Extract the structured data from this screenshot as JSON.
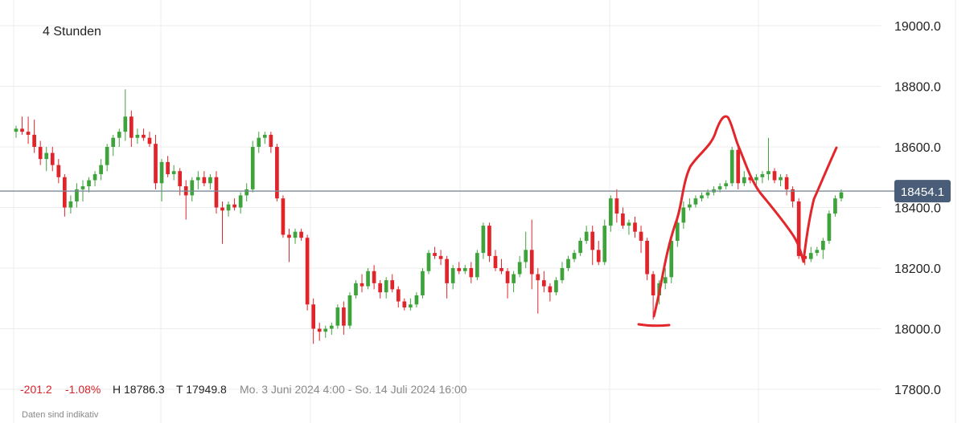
{
  "header": {
    "timeframe_label": "4 Stunden"
  },
  "stats": {
    "change_abs": "-201.2",
    "change_pct": "-1.08%",
    "high": "H 18786.3",
    "low": "T 17949.8",
    "range": "Mo. 3 Juni 2024 4:00 - So. 14 Juli 2024 16:00"
  },
  "footer": {
    "disclaimer": "Daten sind indikativ"
  },
  "colors": {
    "up": "#3ea33a",
    "down": "#e0242a",
    "grid": "#ececec",
    "price_line": "#7d8a99",
    "price_tag": "#4a5d78",
    "annotation": "#e3262b",
    "neg_text": "#d6222a",
    "text": "#222222",
    "muted": "#888888"
  },
  "chart_data": {
    "type": "candlestick",
    "title": "",
    "xlabel": "",
    "ylabel": "",
    "ylim": [
      17760,
      19060
    ],
    "y_ticks": [
      19000,
      18800,
      18600,
      18400,
      18200,
      18000,
      17800
    ],
    "y_tick_labels": [
      "19000.0",
      "18800.0",
      "18600.0",
      "18400.0",
      "18200.0",
      "18000.0",
      "17800.0"
    ],
    "grid": true,
    "last_price": 18454.1,
    "last_price_label": "18454.1",
    "candles": [
      [
        18650,
        18670,
        18630,
        18660
      ],
      [
        18660,
        18700,
        18640,
        18650
      ],
      [
        18650,
        18700,
        18610,
        18640
      ],
      [
        18640,
        18690,
        18580,
        18600
      ],
      [
        18600,
        18620,
        18540,
        18560
      ],
      [
        18560,
        18600,
        18520,
        18580
      ],
      [
        18580,
        18600,
        18520,
        18540
      ],
      [
        18540,
        18560,
        18480,
        18500
      ],
      [
        18500,
        18510,
        18370,
        18400
      ],
      [
        18400,
        18440,
        18380,
        18420
      ],
      [
        18420,
        18480,
        18400,
        18460
      ],
      [
        18460,
        18490,
        18420,
        18470
      ],
      [
        18470,
        18500,
        18450,
        18490
      ],
      [
        18490,
        18520,
        18470,
        18510
      ],
      [
        18510,
        18560,
        18490,
        18540
      ],
      [
        18540,
        18610,
        18520,
        18600
      ],
      [
        18600,
        18640,
        18570,
        18630
      ],
      [
        18630,
        18660,
        18600,
        18650
      ],
      [
        18650,
        18790,
        18620,
        18700
      ],
      [
        18700,
        18720,
        18600,
        18630
      ],
      [
        18630,
        18660,
        18610,
        18640
      ],
      [
        18640,
        18660,
        18620,
        18630
      ],
      [
        18630,
        18650,
        18600,
        18610
      ],
      [
        18610,
        18640,
        18460,
        18480
      ],
      [
        18480,
        18560,
        18420,
        18550
      ],
      [
        18550,
        18570,
        18500,
        18510
      ],
      [
        18510,
        18540,
        18490,
        18520
      ],
      [
        18520,
        18530,
        18440,
        18470
      ],
      [
        18470,
        18490,
        18360,
        18440
      ],
      [
        18440,
        18500,
        18420,
        18490
      ],
      [
        18490,
        18520,
        18460,
        18500
      ],
      [
        18500,
        18520,
        18470,
        18480
      ],
      [
        18480,
        18510,
        18460,
        18500
      ],
      [
        18500,
        18520,
        18380,
        18400
      ],
      [
        18400,
        18420,
        18280,
        18390
      ],
      [
        18390,
        18420,
        18370,
        18410
      ],
      [
        18410,
        18430,
        18390,
        18400
      ],
      [
        18400,
        18450,
        18380,
        18440
      ],
      [
        18440,
        18480,
        18420,
        18460
      ],
      [
        18460,
        18620,
        18450,
        18600
      ],
      [
        18600,
        18650,
        18580,
        18630
      ],
      [
        18630,
        18650,
        18610,
        18640
      ],
      [
        18640,
        18650,
        18580,
        18600
      ],
      [
        18600,
        18610,
        18420,
        18430
      ],
      [
        18430,
        18440,
        18300,
        18310
      ],
      [
        18310,
        18330,
        18220,
        18300
      ],
      [
        18300,
        18330,
        18280,
        18320
      ],
      [
        18320,
        18330,
        18290,
        18300
      ],
      [
        18300,
        18310,
        18060,
        18080
      ],
      [
        18080,
        18100,
        17950,
        18000
      ],
      [
        18000,
        18020,
        17960,
        17990
      ],
      [
        17990,
        18010,
        17970,
        18000
      ],
      [
        18000,
        18020,
        17980,
        18010
      ],
      [
        18010,
        18080,
        18000,
        18070
      ],
      [
        18070,
        18090,
        17980,
        18010
      ],
      [
        18010,
        18120,
        18000,
        18110
      ],
      [
        18110,
        18160,
        18100,
        18150
      ],
      [
        18150,
        18180,
        18120,
        18140
      ],
      [
        18140,
        18200,
        18130,
        18190
      ],
      [
        18190,
        18210,
        18130,
        18150
      ],
      [
        18150,
        18160,
        18100,
        18120
      ],
      [
        18120,
        18170,
        18100,
        18160
      ],
      [
        18160,
        18180,
        18120,
        18130
      ],
      [
        18130,
        18140,
        18070,
        18090
      ],
      [
        18090,
        18100,
        18060,
        18070
      ],
      [
        18070,
        18100,
        18060,
        18080
      ],
      [
        18080,
        18120,
        18070,
        18110
      ],
      [
        18110,
        18200,
        18100,
        18190
      ],
      [
        18190,
        18260,
        18180,
        18250
      ],
      [
        18250,
        18270,
        18230,
        18240
      ],
      [
        18240,
        18260,
        18210,
        18230
      ],
      [
        18230,
        18240,
        18100,
        18150
      ],
      [
        18150,
        18210,
        18130,
        18200
      ],
      [
        18200,
        18220,
        18180,
        18190
      ],
      [
        18190,
        18210,
        18180,
        18200
      ],
      [
        18200,
        18220,
        18150,
        18170
      ],
      [
        18170,
        18260,
        18160,
        18250
      ],
      [
        18250,
        18350,
        18230,
        18340
      ],
      [
        18340,
        18350,
        18220,
        18240
      ],
      [
        18240,
        18260,
        18190,
        18200
      ],
      [
        18200,
        18230,
        18180,
        18190
      ],
      [
        18190,
        18200,
        18100,
        18150
      ],
      [
        18150,
        18190,
        18120,
        18180
      ],
      [
        18180,
        18240,
        18170,
        18220
      ],
      [
        18220,
        18320,
        18200,
        18260
      ],
      [
        18260,
        18360,
        18130,
        18180
      ],
      [
        18180,
        18200,
        18050,
        18160
      ],
      [
        18160,
        18190,
        18120,
        18140
      ],
      [
        18140,
        18150,
        18090,
        18120
      ],
      [
        18120,
        18170,
        18110,
        18160
      ],
      [
        18160,
        18220,
        18150,
        18200
      ],
      [
        18200,
        18240,
        18190,
        18230
      ],
      [
        18230,
        18260,
        18220,
        18250
      ],
      [
        18250,
        18300,
        18240,
        18290
      ],
      [
        18290,
        18340,
        18280,
        18320
      ],
      [
        18320,
        18340,
        18210,
        18260
      ],
      [
        18260,
        18290,
        18210,
        18220
      ],
      [
        18220,
        18360,
        18210,
        18340
      ],
      [
        18340,
        18440,
        18320,
        18430
      ],
      [
        18430,
        18460,
        18350,
        18380
      ],
      [
        18380,
        18400,
        18330,
        18340
      ],
      [
        18340,
        18360,
        18310,
        18350
      ],
      [
        18350,
        18370,
        18300,
        18320
      ],
      [
        18320,
        18340,
        18250,
        18290
      ],
      [
        18290,
        18300,
        18160,
        18180
      ],
      [
        18180,
        18190,
        18030,
        18110
      ],
      [
        18110,
        18160,
        18080,
        18150
      ],
      [
        18150,
        18200,
        18130,
        18170
      ],
      [
        18170,
        18310,
        18150,
        18290
      ],
      [
        18290,
        18360,
        18270,
        18350
      ],
      [
        18350,
        18420,
        18330,
        18400
      ],
      [
        18400,
        18430,
        18390,
        18410
      ],
      [
        18410,
        18440,
        18400,
        18430
      ],
      [
        18430,
        18450,
        18420,
        18440
      ],
      [
        18440,
        18460,
        18430,
        18450
      ],
      [
        18450,
        18470,
        18440,
        18460
      ],
      [
        18460,
        18480,
        18450,
        18470
      ],
      [
        18470,
        18490,
        18460,
        18480
      ],
      [
        18480,
        18600,
        18470,
        18590
      ],
      [
        18590,
        18600,
        18460,
        18480
      ],
      [
        18480,
        18520,
        18470,
        18500
      ],
      [
        18500,
        18510,
        18480,
        18490
      ],
      [
        18490,
        18510,
        18470,
        18500
      ],
      [
        18500,
        18520,
        18480,
        18510
      ],
      [
        18510,
        18630,
        18490,
        18520
      ],
      [
        18520,
        18530,
        18480,
        18490
      ],
      [
        18490,
        18510,
        18470,
        18500
      ],
      [
        18500,
        18510,
        18440,
        18460
      ],
      [
        18460,
        18470,
        18400,
        18420
      ],
      [
        18420,
        18430,
        18230,
        18240
      ],
      [
        18240,
        18260,
        18210,
        18230
      ],
      [
        18230,
        18270,
        18220,
        18250
      ],
      [
        18250,
        18270,
        18240,
        18260
      ],
      [
        18260,
        18300,
        18230,
        18290
      ],
      [
        18290,
        18390,
        18280,
        18380
      ],
      [
        18380,
        18440,
        18370,
        18430
      ],
      [
        18430,
        18460,
        18420,
        18450
      ]
    ]
  }
}
